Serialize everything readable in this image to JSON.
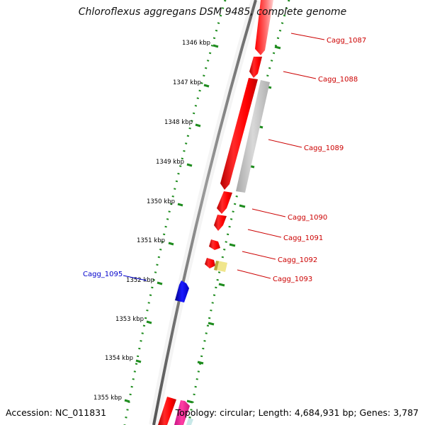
{
  "title": "Chloroflexus aggregans DSM 9485, complete genome",
  "footer": {
    "accession": "Accession: NC_011831",
    "summary": "Topology: circular; Length: 4,684,931 bp; Genes: 3,787"
  },
  "colors": {
    "forward_gene": "#ff0000",
    "reverse_gene": "#0000ee",
    "rna_gene": "#ff1493",
    "other_feature": "#c0c0c0",
    "small_feature": "#f0e68c",
    "backbone": "#777777",
    "ruler": "#1e8c1e",
    "forward_label": "#cc0000",
    "reverse_label": "#0000cc",
    "tick_label": "#000000"
  },
  "ticks": [
    "1346 kbp",
    "1347 kbp",
    "1348 kbp",
    "1349 kbp",
    "1350 kbp",
    "1351 kbp",
    "1352 kbp",
    "1353 kbp",
    "1354 kbp",
    "1355 kbp"
  ],
  "gene_labels": [
    {
      "name": "Cagg_1087",
      "strand": "forward"
    },
    {
      "name": "Cagg_1088",
      "strand": "forward"
    },
    {
      "name": "Cagg_1089",
      "strand": "forward"
    },
    {
      "name": "Cagg_1090",
      "strand": "forward"
    },
    {
      "name": "Cagg_1091",
      "strand": "forward"
    },
    {
      "name": "Cagg_1092",
      "strand": "forward"
    },
    {
      "name": "Cagg_1093",
      "strand": "forward"
    },
    {
      "name": "Cagg_1095",
      "strand": "reverse"
    }
  ]
}
